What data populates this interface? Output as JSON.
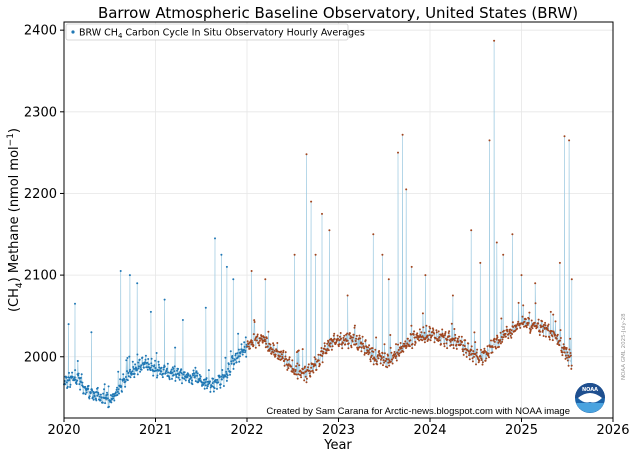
{
  "chart_data": {
    "type": "scatter",
    "title": "Barrow Atmospheric Baseline Observatory, United States (BRW)",
    "xlabel": "Year",
    "ylabel_parts": [
      "(CH",
      "4",
      ") Methane (nmol mol",
      "−1",
      ")"
    ],
    "legend": {
      "position": "top-left",
      "label_parts": [
        "BRW CH",
        "4",
        " Carbon Cycle In Situ Observatory Hourly Averages"
      ]
    },
    "xlim": [
      2020,
      2026
    ],
    "ylim": [
      1925,
      2410
    ],
    "x_ticks": [
      "2020",
      "2021",
      "2022",
      "2023",
      "2024",
      "2025",
      "2026"
    ],
    "y_ticks": [
      "2000",
      "2100",
      "2200",
      "2300",
      "2400"
    ],
    "grid": true,
    "colors": {
      "final_data": "#1f77b4",
      "preliminary_data": "#a0451e",
      "line": "#9ecae1",
      "trend": "#bbbbbb"
    },
    "preliminary_from": 2022.0,
    "baseline": [
      [
        2020.0,
        1968
      ],
      [
        2020.15,
        1975
      ],
      [
        2020.25,
        1958
      ],
      [
        2020.4,
        1950
      ],
      [
        2020.5,
        1945
      ],
      [
        2020.6,
        1960
      ],
      [
        2020.75,
        1985
      ],
      [
        2020.9,
        1992
      ],
      [
        2021.0,
        1985
      ],
      [
        2021.15,
        1980
      ],
      [
        2021.25,
        1978
      ],
      [
        2021.4,
        1975
      ],
      [
        2021.5,
        1972
      ],
      [
        2021.6,
        1965
      ],
      [
        2021.75,
        1975
      ],
      [
        2021.85,
        1995
      ],
      [
        2022.0,
        2012
      ],
      [
        2022.15,
        2025
      ],
      [
        2022.25,
        2010
      ],
      [
        2022.4,
        2000
      ],
      [
        2022.5,
        1985
      ],
      [
        2022.65,
        1978
      ],
      [
        2022.8,
        2000
      ],
      [
        2022.9,
        2015
      ],
      [
        2023.0,
        2020
      ],
      [
        2023.15,
        2022
      ],
      [
        2023.25,
        2015
      ],
      [
        2023.4,
        2000
      ],
      [
        2023.55,
        1995
      ],
      [
        2023.7,
        2010
      ],
      [
        2023.85,
        2025
      ],
      [
        2024.0,
        2028
      ],
      [
        2024.15,
        2022
      ],
      [
        2024.3,
        2018
      ],
      [
        2024.45,
        2005
      ],
      [
        2024.55,
        1998
      ],
      [
        2024.7,
        2015
      ],
      [
        2024.85,
        2030
      ],
      [
        2025.0,
        2040
      ],
      [
        2025.15,
        2038
      ],
      [
        2025.3,
        2032
      ],
      [
        2025.45,
        2010
      ],
      [
        2025.55,
        1992
      ]
    ],
    "spikes": [
      [
        2020.05,
        2040
      ],
      [
        2020.12,
        2065
      ],
      [
        2020.3,
        2030
      ],
      [
        2020.62,
        2105
      ],
      [
        2020.72,
        2100
      ],
      [
        2020.8,
        2090
      ],
      [
        2020.95,
        2055
      ],
      [
        2021.1,
        2070
      ],
      [
        2021.3,
        2045
      ],
      [
        2021.55,
        2060
      ],
      [
        2021.65,
        2145
      ],
      [
        2021.72,
        2125
      ],
      [
        2021.78,
        2110
      ],
      [
        2021.85,
        2095
      ],
      [
        2022.05,
        2105
      ],
      [
        2022.2,
        2095
      ],
      [
        2022.52,
        2125
      ],
      [
        2022.65,
        2248
      ],
      [
        2022.7,
        2190
      ],
      [
        2022.75,
        2125
      ],
      [
        2022.82,
        2175
      ],
      [
        2022.9,
        2155
      ],
      [
        2023.1,
        2075
      ],
      [
        2023.38,
        2150
      ],
      [
        2023.48,
        2125
      ],
      [
        2023.55,
        2095
      ],
      [
        2023.65,
        2250
      ],
      [
        2023.7,
        2272
      ],
      [
        2023.74,
        2205
      ],
      [
        2023.8,
        2110
      ],
      [
        2023.95,
        2100
      ],
      [
        2024.25,
        2075
      ],
      [
        2024.45,
        2155
      ],
      [
        2024.55,
        2115
      ],
      [
        2024.65,
        2265
      ],
      [
        2024.7,
        2387
      ],
      [
        2024.73,
        2140
      ],
      [
        2024.8,
        2125
      ],
      [
        2024.9,
        2150
      ],
      [
        2025.0,
        2100
      ],
      [
        2025.15,
        2090
      ],
      [
        2025.32,
        2055
      ],
      [
        2025.42,
        2115
      ],
      [
        2025.47,
        2270
      ],
      [
        2025.52,
        2265
      ],
      [
        2025.55,
        2095
      ]
    ],
    "note": "NOAA GML 2025-July-28"
  },
  "credit": "Created by Sam Carana for Arctic-news.blogspot.com with NOAA image",
  "logo": {
    "text": "NOAA"
  }
}
